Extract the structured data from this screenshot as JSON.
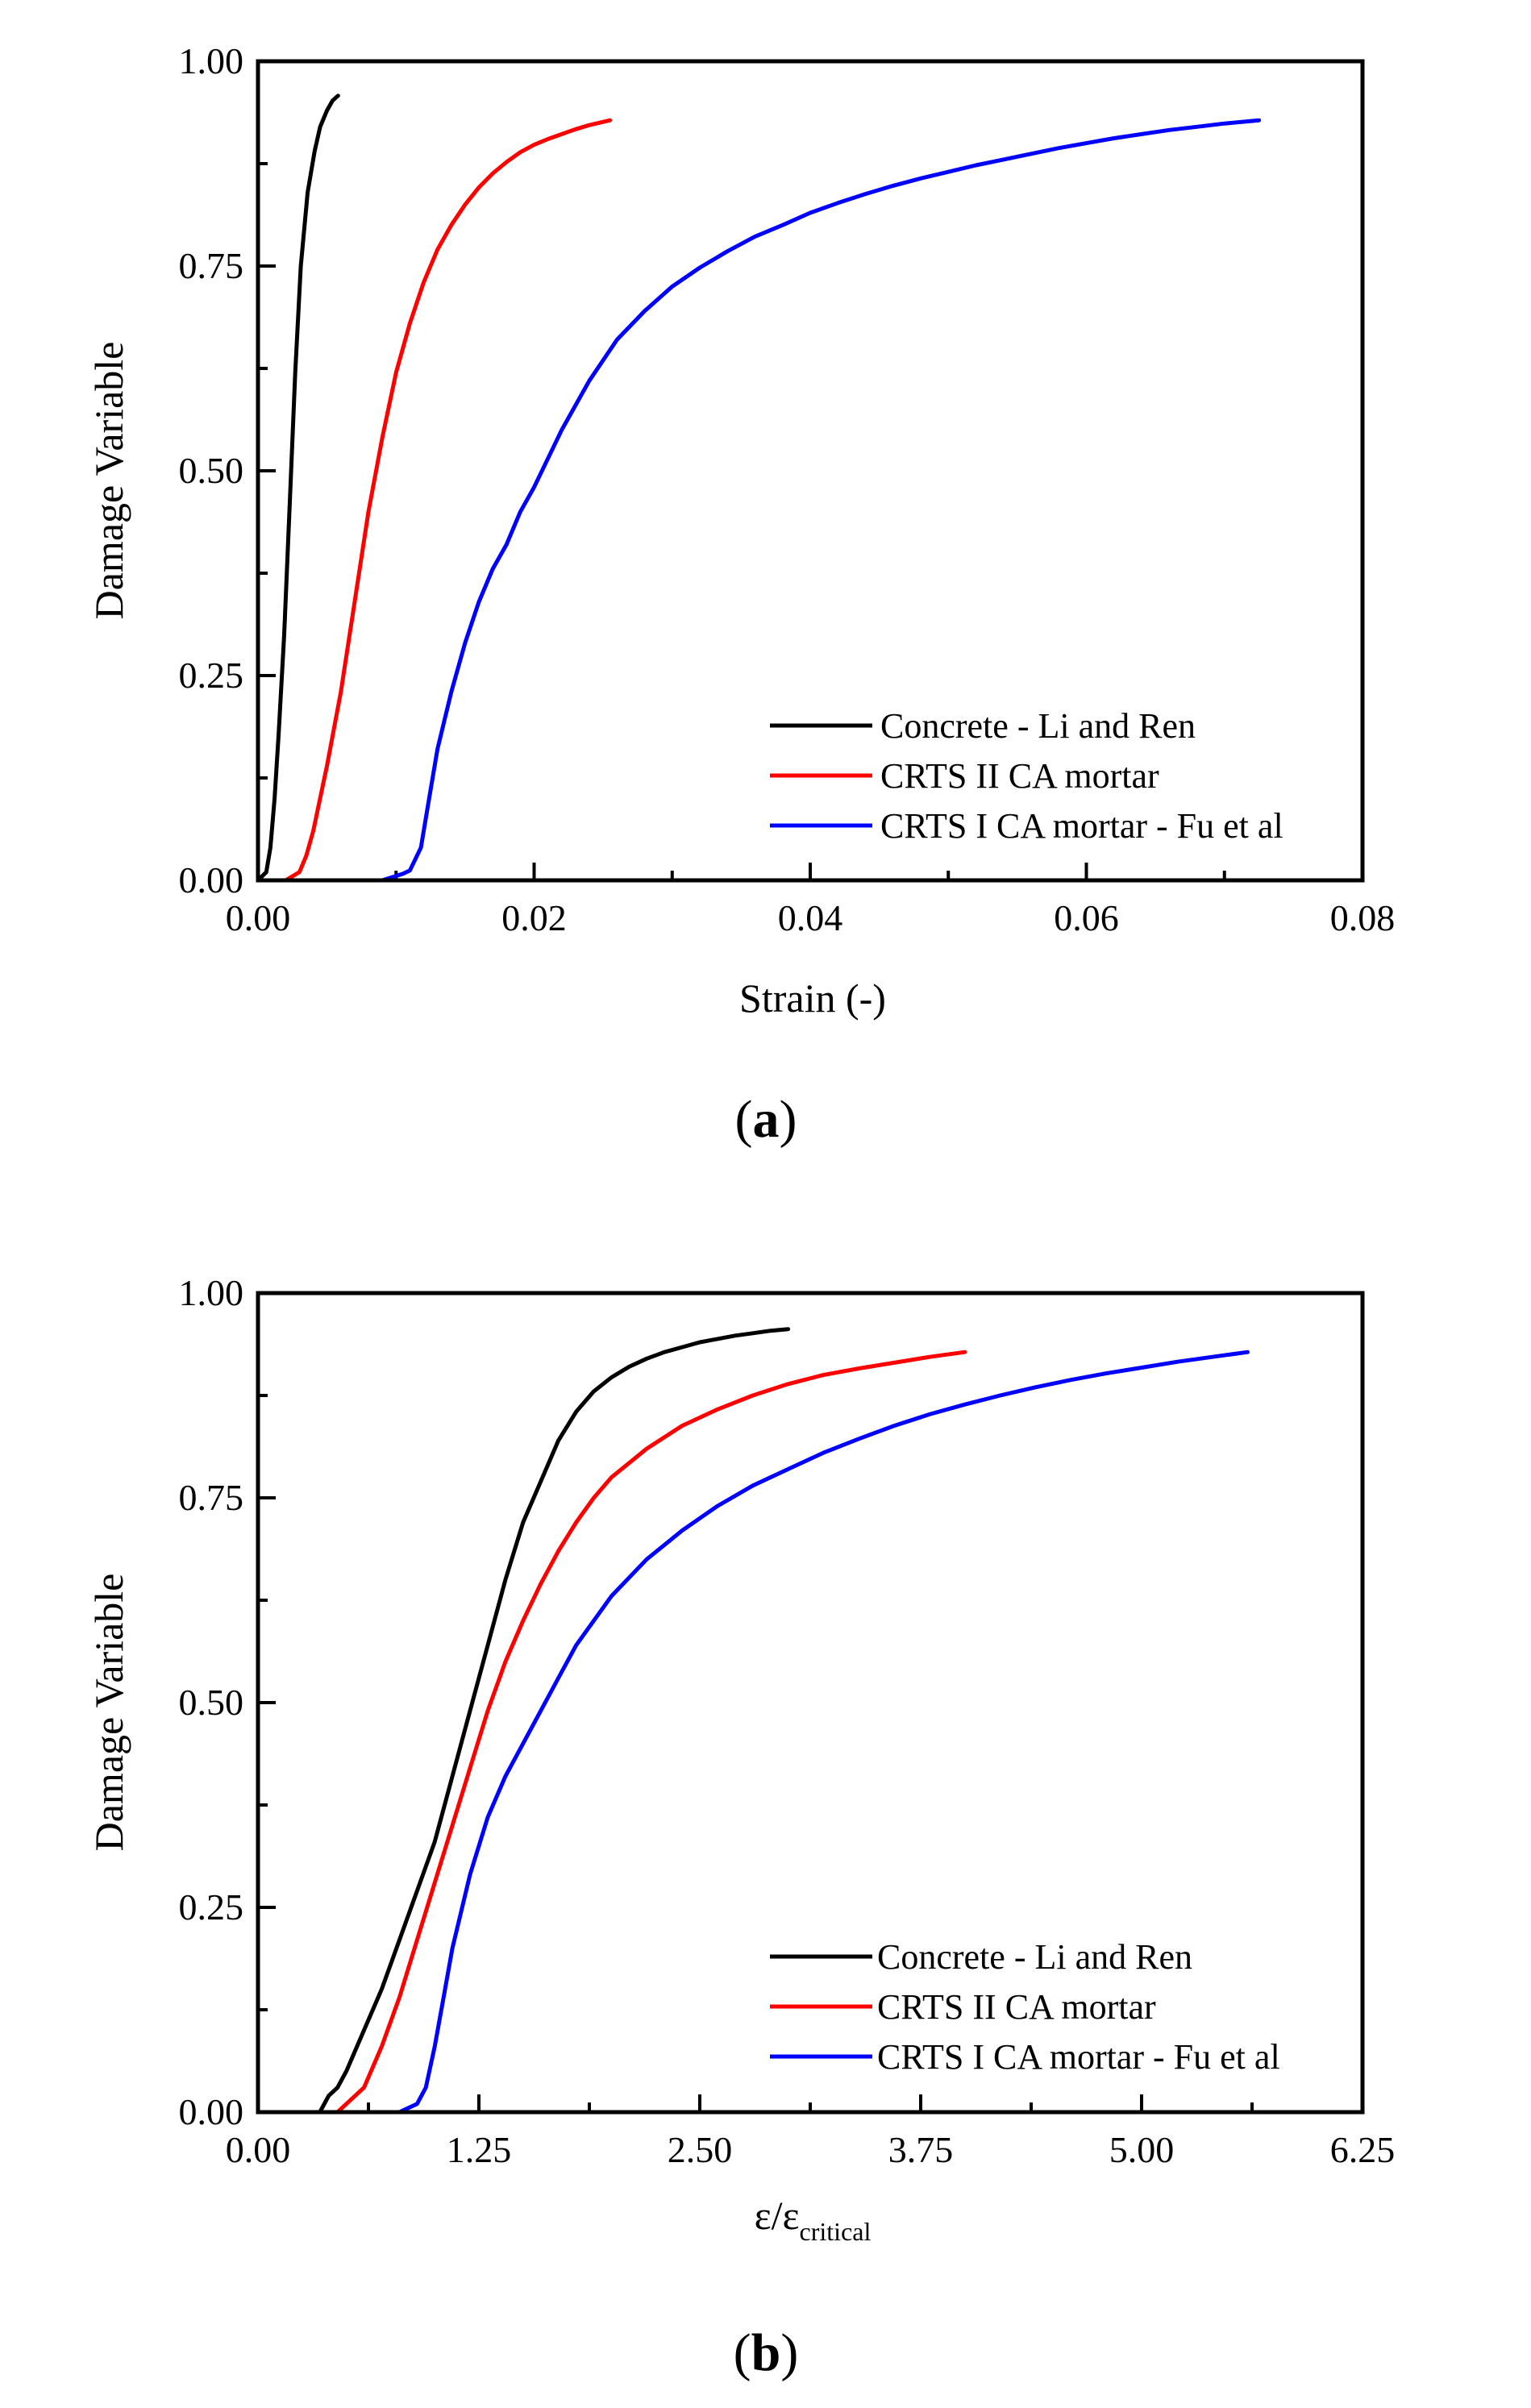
{
  "chart_data": [
    {
      "type": "line",
      "panel_label": "a",
      "xlabel": "Strain (-)",
      "ylabel": "Damage Variable",
      "xlim": [
        0,
        0.08
      ],
      "ylim": [
        0,
        1
      ],
      "xticks": [
        0,
        0.02,
        0.04,
        0.06,
        0.08
      ],
      "xtick_labels": [
        "0.00",
        "0.02",
        "0.04",
        "0.06",
        "0.08"
      ],
      "yticks": [
        0,
        0.25,
        0.5,
        0.75,
        1.0
      ],
      "ytick_labels": [
        "0.00",
        "0.25",
        "0.50",
        "0.75",
        "1.00"
      ],
      "legend_position": "bottom-right",
      "series": [
        {
          "name": "Concrete - Li and Ren",
          "color": "#000000",
          "x": [
            0.0,
            0.0006,
            0.0009,
            0.0012,
            0.0015,
            0.0019,
            0.0023,
            0.0027,
            0.0031,
            0.0036,
            0.0041,
            0.0045,
            0.005,
            0.0054,
            0.0058
          ],
          "y": [
            0.0,
            0.01,
            0.04,
            0.1,
            0.18,
            0.3,
            0.46,
            0.62,
            0.75,
            0.84,
            0.89,
            0.92,
            0.94,
            0.952,
            0.958
          ]
        },
        {
          "name": "CRTS II CA mortar",
          "color": "#ff0000",
          "x": [
            0.0,
            0.002,
            0.003,
            0.0035,
            0.004,
            0.005,
            0.006,
            0.007,
            0.008,
            0.009,
            0.01,
            0.011,
            0.012,
            0.013,
            0.014,
            0.015,
            0.016,
            0.017,
            0.018,
            0.019,
            0.02,
            0.021,
            0.022,
            0.023,
            0.024,
            0.0255
          ],
          "y": [
            0.0,
            0.0,
            0.01,
            0.03,
            0.06,
            0.14,
            0.23,
            0.34,
            0.45,
            0.54,
            0.62,
            0.68,
            0.73,
            0.77,
            0.8,
            0.825,
            0.846,
            0.863,
            0.877,
            0.889,
            0.898,
            0.905,
            0.911,
            0.917,
            0.922,
            0.928
          ]
        },
        {
          "name": "CRTS I CA mortar - Fu et al",
          "color": "#0000ff",
          "x": [
            0.0,
            0.009,
            0.0105,
            0.011,
            0.0118,
            0.0123,
            0.013,
            0.014,
            0.015,
            0.016,
            0.017,
            0.018,
            0.019,
            0.02,
            0.022,
            0.024,
            0.026,
            0.028,
            0.03,
            0.032,
            0.034,
            0.036,
            0.038,
            0.04,
            0.042,
            0.044,
            0.046,
            0.048,
            0.05,
            0.052,
            0.054,
            0.056,
            0.058,
            0.06,
            0.062,
            0.064,
            0.066,
            0.068,
            0.07,
            0.0725
          ],
          "y": [
            0.0,
            0.0,
            0.008,
            0.012,
            0.04,
            0.09,
            0.16,
            0.23,
            0.29,
            0.34,
            0.38,
            0.41,
            0.45,
            0.48,
            0.55,
            0.61,
            0.66,
            0.695,
            0.725,
            0.748,
            0.768,
            0.786,
            0.8,
            0.815,
            0.827,
            0.838,
            0.848,
            0.857,
            0.865,
            0.873,
            0.88,
            0.887,
            0.894,
            0.9,
            0.906,
            0.911,
            0.916,
            0.92,
            0.924,
            0.928
          ]
        }
      ]
    },
    {
      "type": "line",
      "panel_label": "b",
      "xlabel_main": "ε/ε",
      "xlabel_sub": "critical",
      "ylabel": "Damage Variable",
      "xlim": [
        0,
        6.25
      ],
      "ylim": [
        0,
        1
      ],
      "xticks": [
        0,
        1.25,
        2.5,
        3.75,
        5.0,
        6.25
      ],
      "xtick_labels": [
        "0.00",
        "1.25",
        "2.50",
        "3.75",
        "5.00",
        "6.25"
      ],
      "yticks": [
        0,
        0.25,
        0.5,
        0.75,
        1.0
      ],
      "ytick_labels": [
        "0.00",
        "0.25",
        "0.50",
        "0.75",
        "1.00"
      ],
      "legend_position": "bottom-right",
      "series": [
        {
          "name": "Concrete - Li and Ren",
          "color": "#000000",
          "x": [
            0.0,
            0.35,
            0.4,
            0.45,
            0.5,
            0.6,
            0.7,
            0.8,
            0.9,
            1.0,
            1.1,
            1.2,
            1.3,
            1.4,
            1.5,
            1.6,
            1.7,
            1.8,
            1.9,
            2.0,
            2.1,
            2.2,
            2.3,
            2.4,
            2.5,
            2.6,
            2.7,
            2.8,
            2.9,
            3.0
          ],
          "y": [
            0.0,
            0.0,
            0.02,
            0.03,
            0.05,
            0.1,
            0.15,
            0.21,
            0.27,
            0.33,
            0.41,
            0.49,
            0.57,
            0.65,
            0.72,
            0.77,
            0.82,
            0.855,
            0.88,
            0.897,
            0.91,
            0.92,
            0.928,
            0.934,
            0.94,
            0.944,
            0.948,
            0.951,
            0.954,
            0.956
          ]
        },
        {
          "name": "CRTS II CA mortar",
          "color": "#ff0000",
          "x": [
            0.0,
            0.45,
            0.5,
            0.6,
            0.7,
            0.8,
            0.9,
            1.0,
            1.1,
            1.2,
            1.3,
            1.4,
            1.5,
            1.6,
            1.7,
            1.8,
            1.9,
            2.0,
            2.2,
            2.4,
            2.6,
            2.8,
            3.0,
            3.2,
            3.4,
            3.6,
            3.8,
            4.0
          ],
          "y": [
            0.0,
            0.0,
            0.01,
            0.03,
            0.08,
            0.14,
            0.21,
            0.28,
            0.35,
            0.42,
            0.49,
            0.55,
            0.6,
            0.645,
            0.685,
            0.72,
            0.75,
            0.775,
            0.81,
            0.838,
            0.858,
            0.875,
            0.889,
            0.9,
            0.908,
            0.915,
            0.922,
            0.928
          ]
        },
        {
          "name": "CRTS I CA mortar - Fu et al",
          "color": "#0000ff",
          "x": [
            0.0,
            0.8,
            0.85,
            0.9,
            0.95,
            1.0,
            1.05,
            1.1,
            1.2,
            1.3,
            1.4,
            1.5,
            1.6,
            1.7,
            1.8,
            2.0,
            2.2,
            2.4,
            2.6,
            2.8,
            3.0,
            3.2,
            3.4,
            3.6,
            3.8,
            4.0,
            4.2,
            4.4,
            4.6,
            4.8,
            5.0,
            5.2,
            5.4,
            5.6
          ],
          "y": [
            0.0,
            0.0,
            0.005,
            0.01,
            0.03,
            0.08,
            0.14,
            0.2,
            0.29,
            0.36,
            0.41,
            0.45,
            0.49,
            0.53,
            0.57,
            0.63,
            0.675,
            0.71,
            0.74,
            0.765,
            0.785,
            0.805,
            0.822,
            0.838,
            0.852,
            0.864,
            0.875,
            0.885,
            0.894,
            0.902,
            0.909,
            0.916,
            0.922,
            0.928
          ]
        }
      ]
    }
  ]
}
